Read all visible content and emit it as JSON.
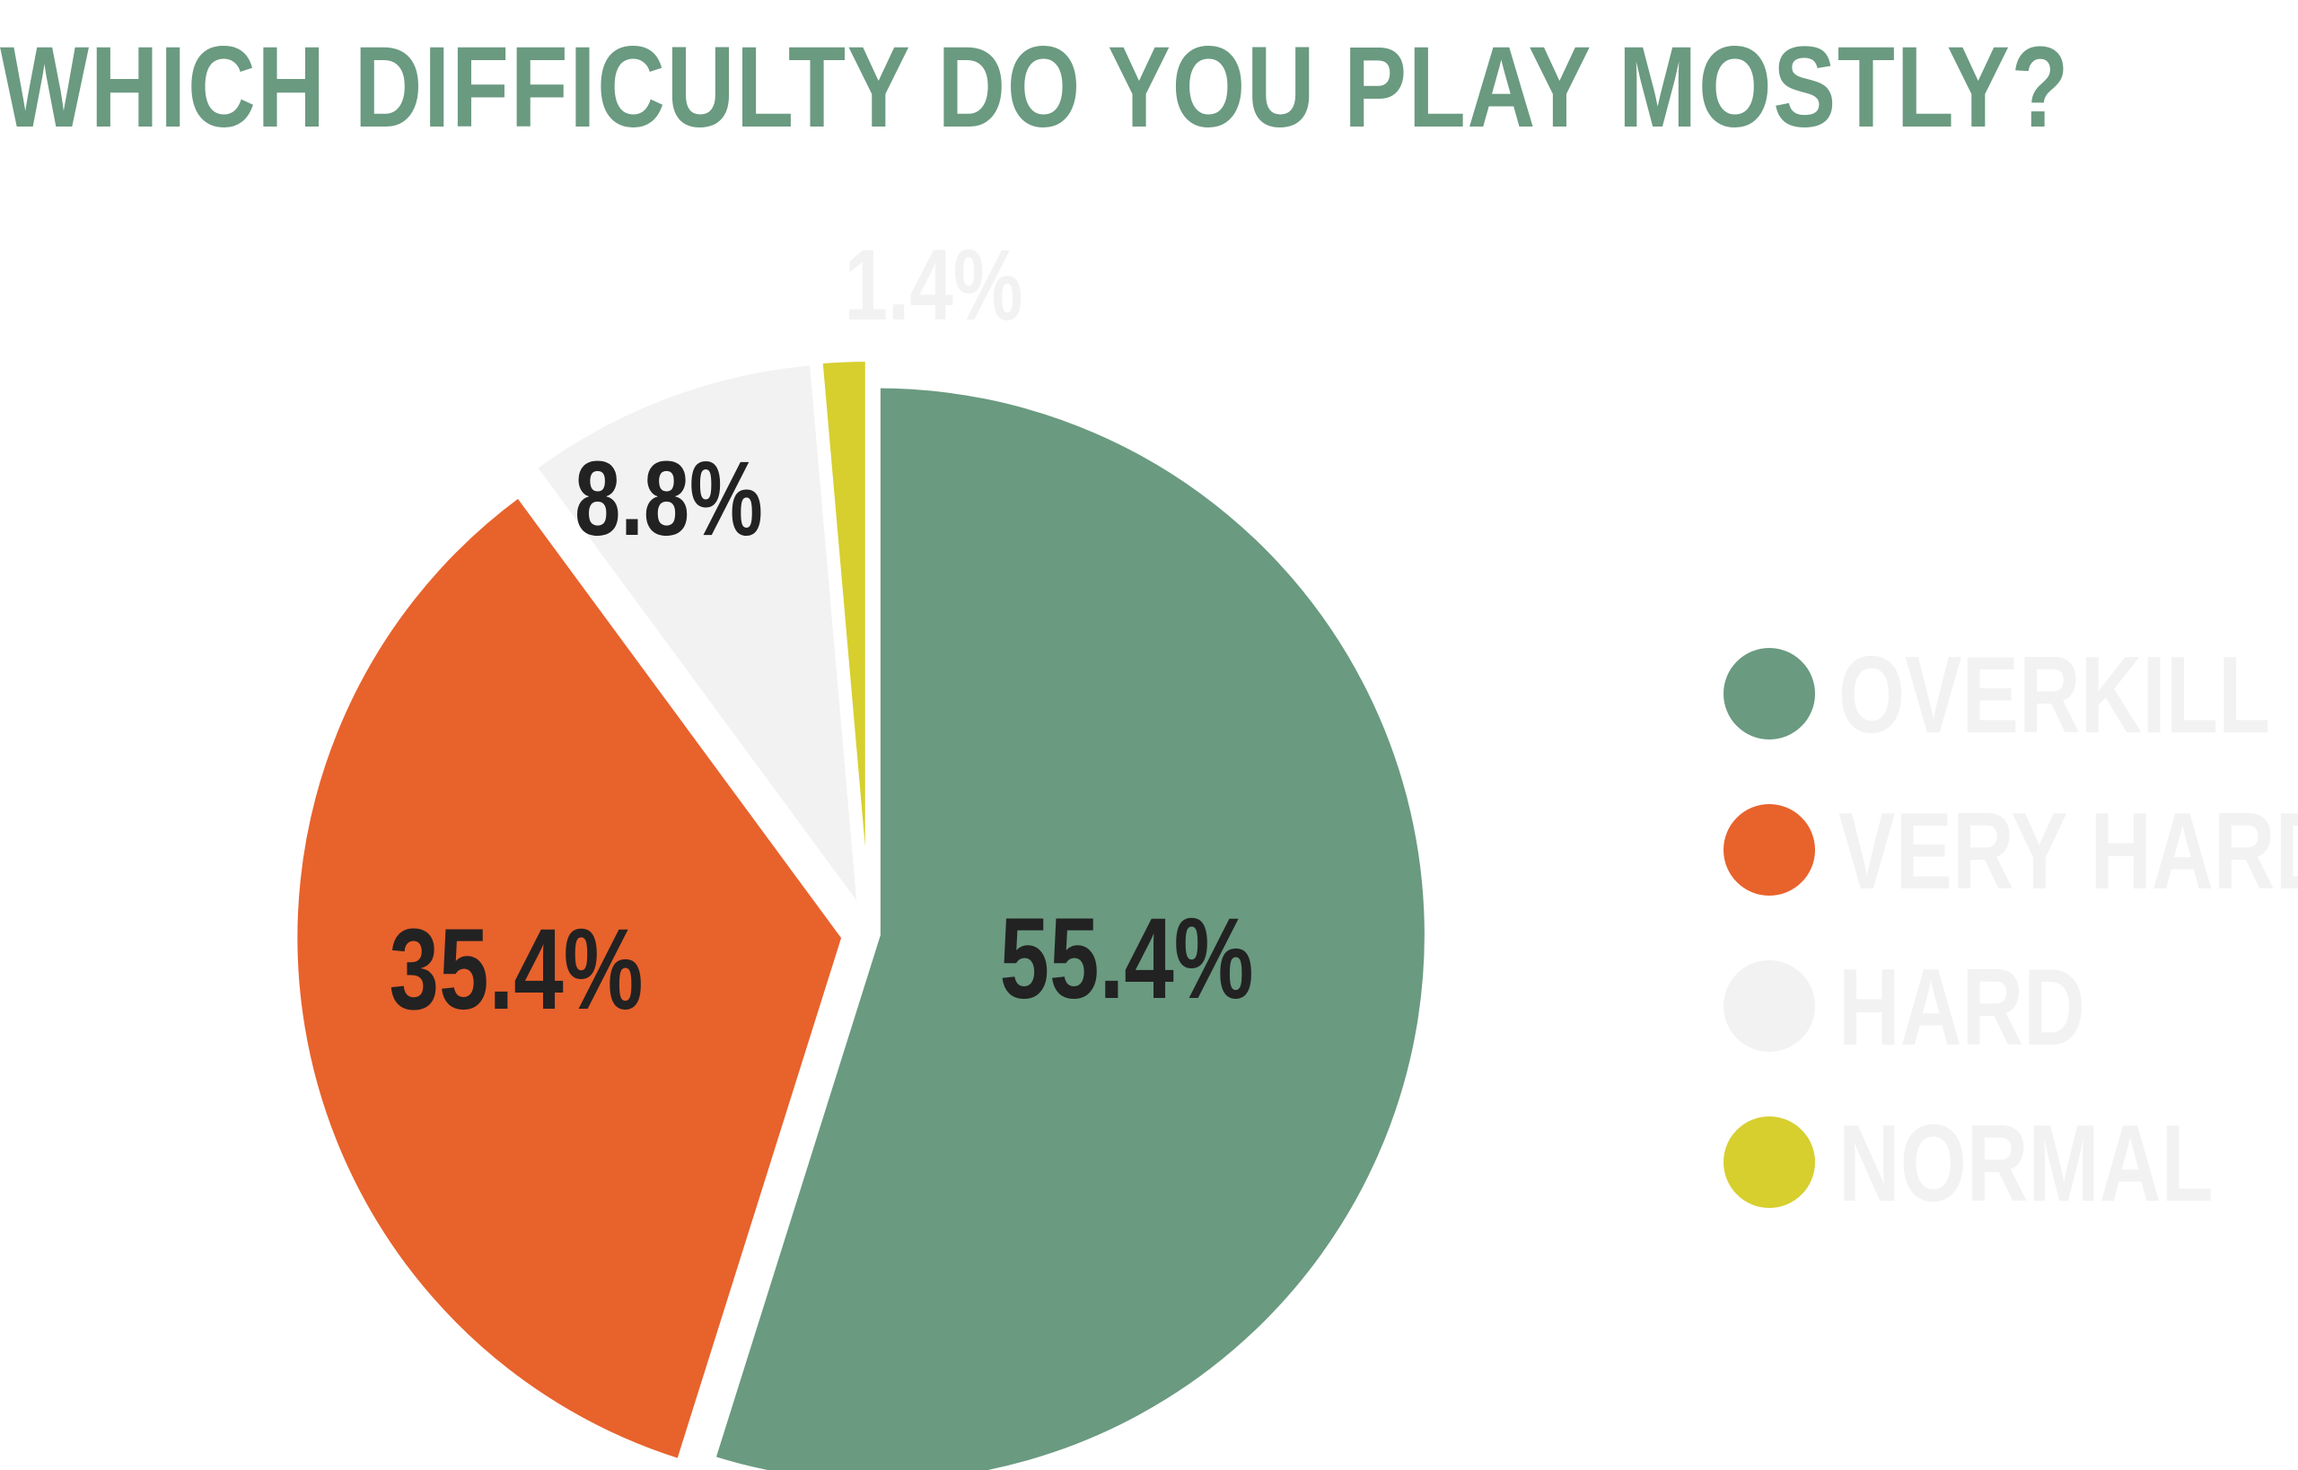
{
  "title": "WHICH DIFFICULTY DO YOU PLAY MOSTLY?",
  "chart_data": {
    "type": "pie",
    "title": "WHICH DIFFICULTY DO YOU PLAY MOSTLY?",
    "categories": [
      "OVERKILL",
      "VERY HARD",
      "HARD",
      "NORMAL"
    ],
    "values": [
      55.4,
      35.4,
      8.8,
      1.4
    ],
    "labels": [
      "55.4%",
      "35.4%",
      "8.8%",
      "1.4%"
    ],
    "colors": [
      "#6a9a80",
      "#e8622c",
      "#f2f2f2",
      "#d6cf2e"
    ],
    "label_colors": [
      "#222222",
      "#222222",
      "#222222",
      "#f2f2f2"
    ],
    "legend_position": "right"
  }
}
